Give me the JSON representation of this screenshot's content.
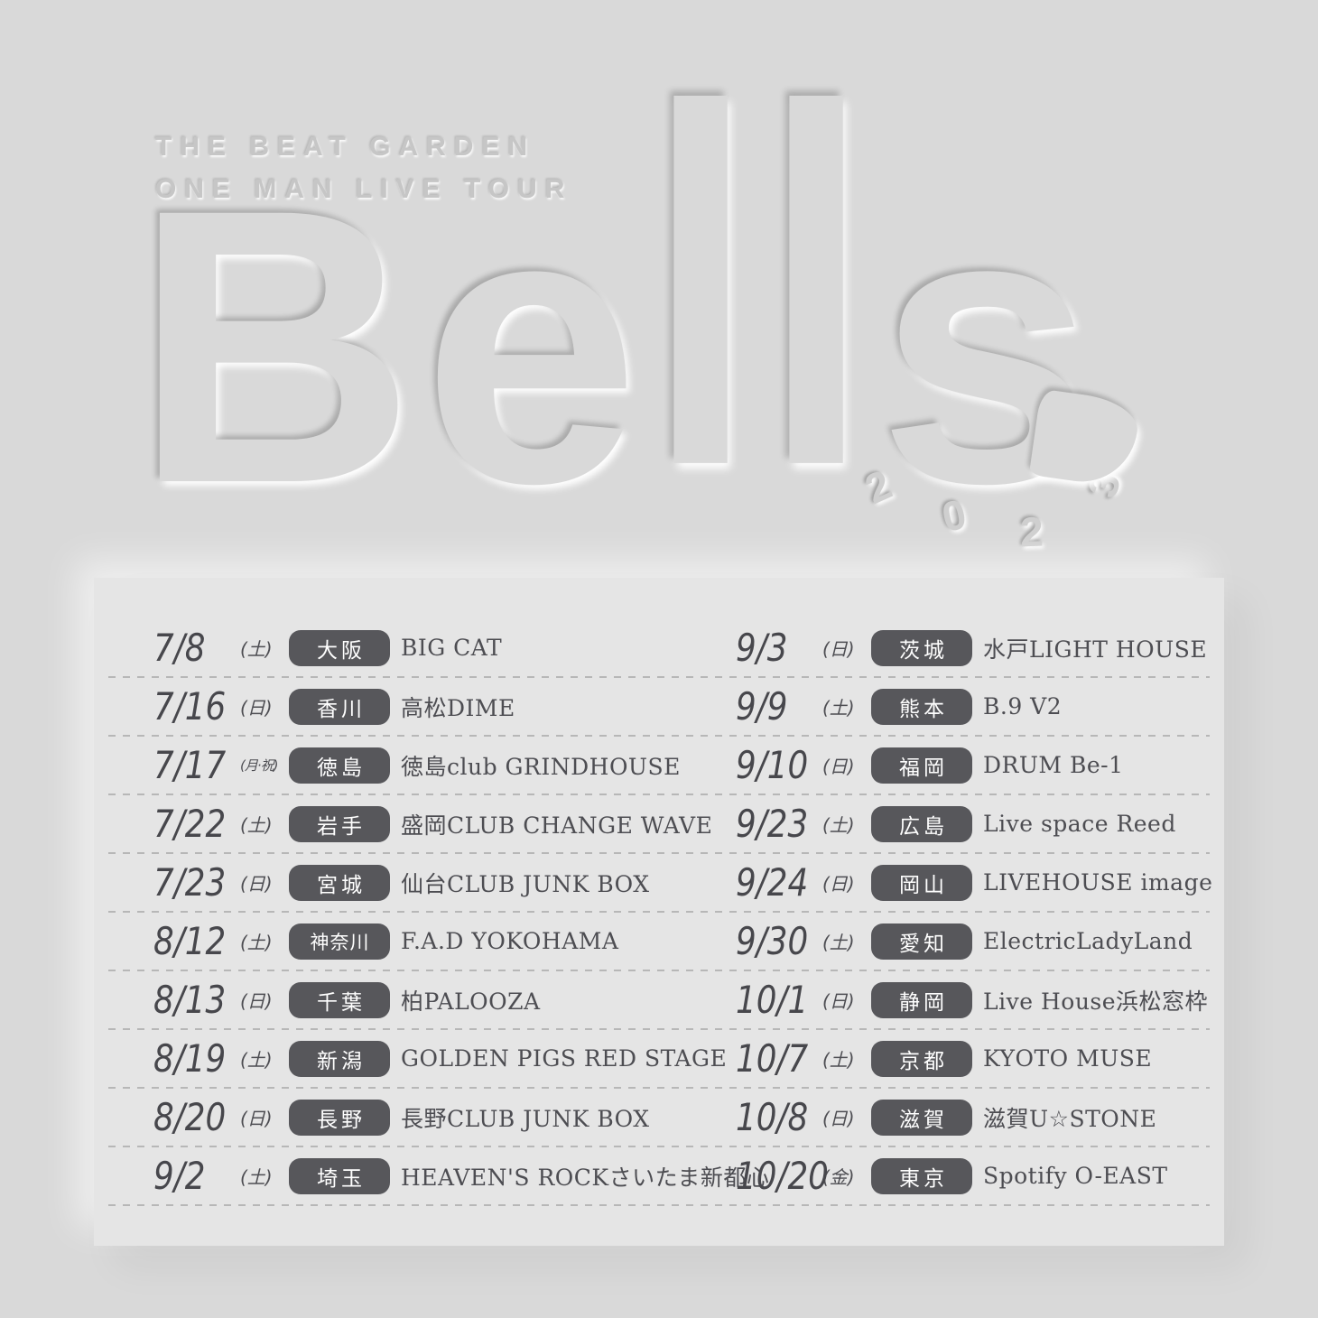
{
  "colors": {
    "background": "#d9d9d9",
    "panel": "#e5e5e5",
    "badge": "#57575b",
    "badge_text": "#ffffff",
    "text": "#4d4d52",
    "date": "#47474c",
    "divider": "#afafaf",
    "emboss_fill": "#c6c6c6"
  },
  "header": {
    "line1": "THE BEAT GARDEN",
    "line2": "ONE MAN LIVE TOUR"
  },
  "title": {
    "word": "Bells",
    "year": "2023"
  },
  "schedule": {
    "left": [
      {
        "date": "7/8",
        "day": "(土)",
        "pref": "大阪",
        "venue": "BIG CAT"
      },
      {
        "date": "7/16",
        "day": "(日)",
        "pref": "香川",
        "venue": "高松DIME"
      },
      {
        "date": "7/17",
        "day": "(月·祝)",
        "pref": "徳島",
        "venue": "徳島club GRINDHOUSE"
      },
      {
        "date": "7/22",
        "day": "(土)",
        "pref": "岩手",
        "venue": "盛岡CLUB CHANGE WAVE"
      },
      {
        "date": "7/23",
        "day": "(日)",
        "pref": "宮城",
        "venue": "仙台CLUB JUNK BOX"
      },
      {
        "date": "8/12",
        "day": "(土)",
        "pref": "神奈川",
        "venue": "F.A.D YOKOHAMA"
      },
      {
        "date": "8/13",
        "day": "(日)",
        "pref": "千葉",
        "venue": "柏PALOOZA"
      },
      {
        "date": "8/19",
        "day": "(土)",
        "pref": "新潟",
        "venue": "GOLDEN PIGS RED STAGE"
      },
      {
        "date": "8/20",
        "day": "(日)",
        "pref": "長野",
        "venue": "長野CLUB JUNK BOX"
      },
      {
        "date": "9/2",
        "day": "(土)",
        "pref": "埼玉",
        "venue": "HEAVEN'S ROCKさいたま新都心"
      }
    ],
    "right": [
      {
        "date": "9/3",
        "day": "(日)",
        "pref": "茨城",
        "venue": "水戸LIGHT HOUSE"
      },
      {
        "date": "9/9",
        "day": "(土)",
        "pref": "熊本",
        "venue": "B.9 V2"
      },
      {
        "date": "9/10",
        "day": "(日)",
        "pref": "福岡",
        "venue": "DRUM Be-1"
      },
      {
        "date": "9/23",
        "day": "(土)",
        "pref": "広島",
        "venue": "Live space Reed"
      },
      {
        "date": "9/24",
        "day": "(日)",
        "pref": "岡山",
        "venue": "LIVEHOUSE image"
      },
      {
        "date": "9/30",
        "day": "(土)",
        "pref": "愛知",
        "venue": "ElectricLadyLand"
      },
      {
        "date": "10/1",
        "day": "(日)",
        "pref": "静岡",
        "venue": "Live House浜松窓枠"
      },
      {
        "date": "10/7",
        "day": "(土)",
        "pref": "京都",
        "venue": "KYOTO MUSE"
      },
      {
        "date": "10/8",
        "day": "(日)",
        "pref": "滋賀",
        "venue": "滋賀U☆STONE"
      },
      {
        "date": "10/20",
        "day": "(金)",
        "pref": "東京",
        "venue": "Spotify O-EAST"
      }
    ]
  }
}
